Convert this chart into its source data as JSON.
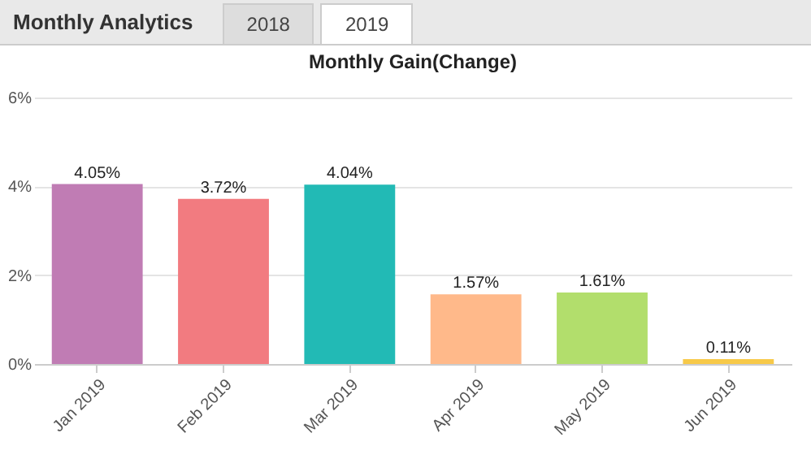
{
  "chart_data": {
    "type": "bar",
    "title": "Monthly Gain(Change)",
    "annotations": [
      "Monthly Analytics",
      "2018",
      "2019"
    ],
    "categories": [
      "Jan 2019",
      "Feb 2019",
      "Mar 2019",
      "Apr 2019",
      "May 2019",
      "Jun 2019"
    ],
    "values": [
      4.05,
      3.72,
      4.04,
      1.57,
      1.61,
      0.11
    ],
    "value_labels": [
      "4.05%",
      "3.72%",
      "4.04%",
      "1.57%",
      "1.61%",
      "0.11%"
    ],
    "colors": [
      "#c07cb4",
      "#f27b80",
      "#22bab5",
      "#ffb98a",
      "#b2de6c",
      "#f7c948"
    ],
    "ylim": [
      0,
      6
    ],
    "yticks": [
      {
        "value": 0,
        "label": "0%"
      },
      {
        "value": 2,
        "label": "2%"
      },
      {
        "value": 4,
        "label": "4%"
      },
      {
        "value": 6,
        "label": "6%"
      }
    ],
    "grid": "y",
    "legend": false
  }
}
